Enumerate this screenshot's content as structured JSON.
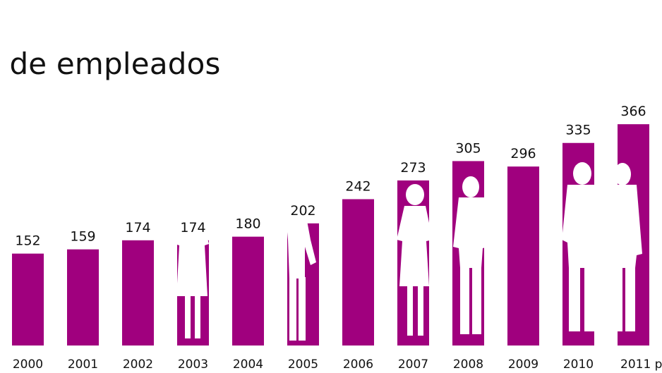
{
  "chart_data": {
    "type": "bar",
    "title": "o de empleados",
    "categories": [
      "2000",
      "2001",
      "2002",
      "2003",
      "2004",
      "2005",
      "2006",
      "2007",
      "2008",
      "2009",
      "2010",
      "2011 p"
    ],
    "values": [
      152,
      159,
      174,
      174,
      180,
      202,
      242,
      273,
      305,
      296,
      335,
      366
    ],
    "xlabel": "",
    "ylabel": "",
    "grid": false,
    "legend": "none",
    "decorations": "white-person-silhouettes",
    "colors": {
      "bar": "#A0007E",
      "silhouette": "#ffffff",
      "text": "#111111"
    }
  }
}
